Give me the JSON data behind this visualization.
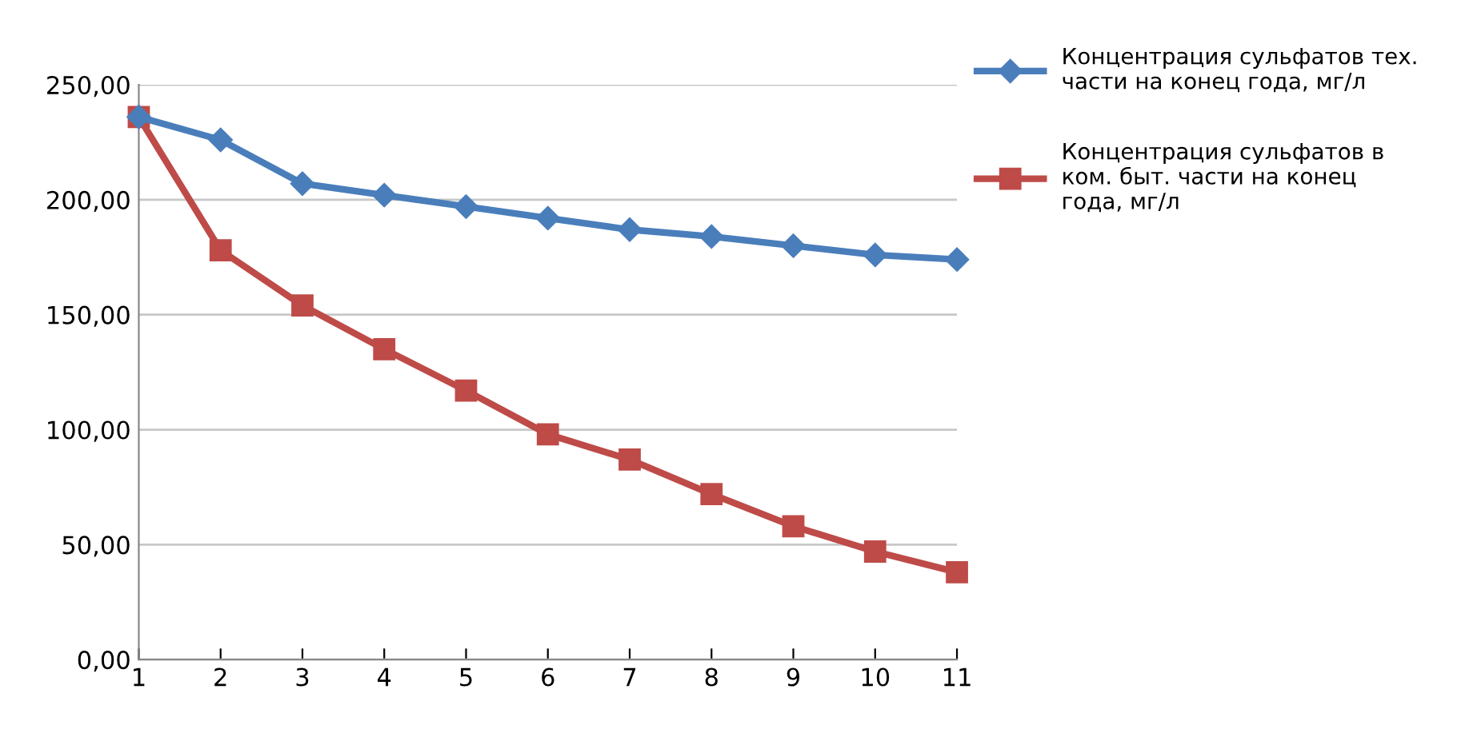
{
  "chart_data": {
    "type": "line",
    "x": [
      1,
      2,
      3,
      4,
      5,
      6,
      7,
      8,
      9,
      10,
      11
    ],
    "xlim": [
      1,
      11
    ],
    "xticks": [
      1,
      2,
      3,
      4,
      5,
      6,
      7,
      8,
      9,
      10,
      11
    ],
    "ylim": [
      0,
      250
    ],
    "yticks": [
      {
        "value": 0,
        "label": "0,00"
      },
      {
        "value": 50,
        "label": "50,00"
      },
      {
        "value": 100,
        "label": "100,00"
      },
      {
        "value": 150,
        "label": "150,00"
      },
      {
        "value": 200,
        "label": "200,00"
      },
      {
        "value": 250,
        "label": "250,00"
      }
    ],
    "grid": "y",
    "legend": "right",
    "series": [
      {
        "name": "Концентрация сульфатов тех. части на конец года, мг/л",
        "color": "#4a7ebb",
        "marker": "diamond",
        "values": [
          236,
          226,
          207,
          202,
          197,
          192,
          187,
          184,
          180,
          176,
          174
        ]
      },
      {
        "name": "Концентрация сульфатов в ком. быт. части на конец года, мг/л",
        "color": "#be4b48",
        "marker": "square",
        "values": [
          236,
          178,
          154,
          135,
          117,
          98,
          87,
          72,
          58,
          47,
          38
        ]
      }
    ]
  }
}
